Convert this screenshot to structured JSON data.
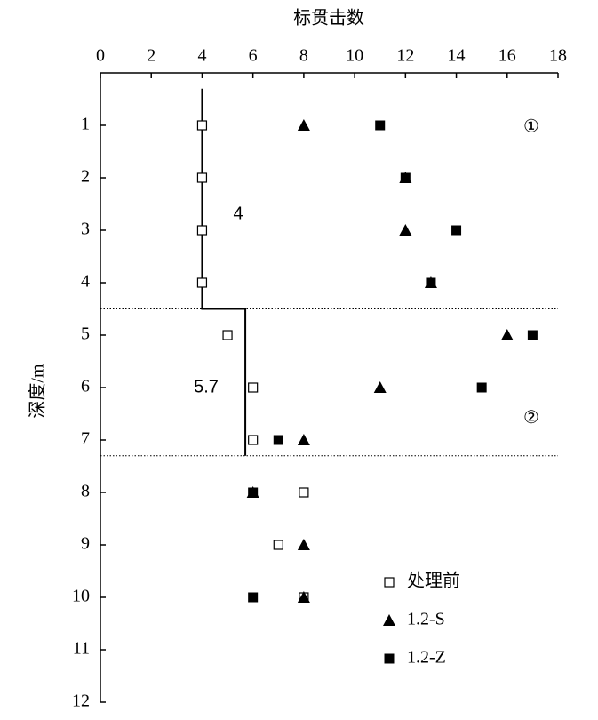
{
  "chart_data": {
    "type": "scatter",
    "xlabel": "标贯击数",
    "ylabel": "深度/m",
    "xlim": [
      0,
      18
    ],
    "xticks": [
      0,
      2,
      4,
      6,
      8,
      10,
      12,
      14,
      16,
      18
    ],
    "ylim": [
      0,
      12
    ],
    "yticks": [
      1,
      2,
      3,
      4,
      5,
      6,
      7,
      8,
      9,
      10,
      11,
      12
    ],
    "y_inverted": true,
    "x_axis_position": "top",
    "legend": "lower right",
    "series": [
      {
        "name": "处理前",
        "marker": "open-square",
        "color": "#000000",
        "x": [
          4,
          4,
          4,
          4,
          5,
          6,
          6,
          8,
          7,
          8
        ],
        "values": [
          1,
          2,
          3,
          4,
          5,
          6,
          7,
          8,
          9,
          10
        ]
      },
      {
        "name": "1.2-S",
        "marker": "triangle",
        "color": "#000000",
        "x": [
          8,
          12,
          12,
          13,
          16,
          11,
          8,
          6,
          8,
          8
        ],
        "values": [
          1,
          2,
          3,
          4,
          5,
          6,
          7,
          8,
          9,
          10
        ]
      },
      {
        "name": "1.2-Z",
        "marker": "square",
        "color": "#000000",
        "x": [
          11,
          12,
          14,
          13,
          17,
          15,
          7,
          6,
          6
        ],
        "values": [
          1,
          2,
          3,
          4,
          5,
          6,
          7,
          8,
          10
        ]
      }
    ],
    "reference_line": [
      {
        "value": 4,
        "from": 0.3,
        "to": 4.5
      },
      {
        "value": 5.7,
        "from": 4.5,
        "to": 7.3
      }
    ],
    "layer_boundaries": [
      4.5,
      7.3
    ],
    "layer_labels": [
      "①",
      "②"
    ]
  }
}
